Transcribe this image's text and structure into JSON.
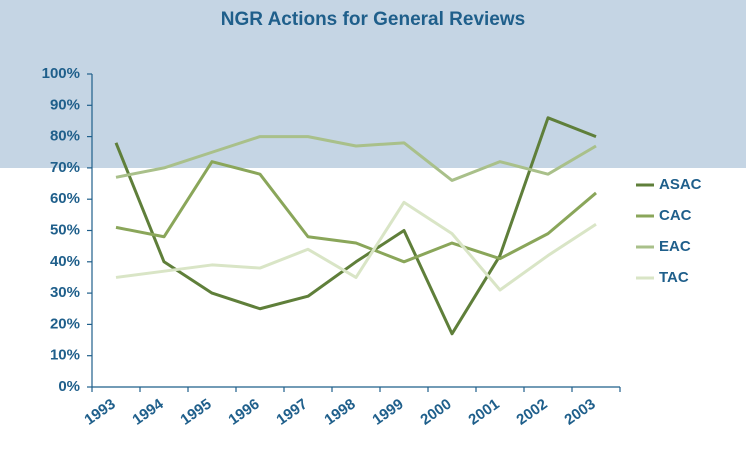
{
  "chart_data": {
    "type": "line",
    "title": "NGR Actions for General Reviews",
    "categories": [
      "1993",
      "1994",
      "1995",
      "1996",
      "1997",
      "1998",
      "1999",
      "2000",
      "2001",
      "2002",
      "2003"
    ],
    "series": [
      {
        "name": "ASAC",
        "color": "#5f7f3a",
        "values": [
          78,
          40,
          30,
          25,
          29,
          40,
          50,
          17,
          42,
          86,
          80
        ]
      },
      {
        "name": "CAC",
        "color": "#8aa65a",
        "values": [
          51,
          48,
          72,
          68,
          48,
          46,
          40,
          46,
          41,
          49,
          62
        ]
      },
      {
        "name": "EAC",
        "color": "#a9c08a",
        "values": [
          67,
          70,
          75,
          80,
          80,
          77,
          78,
          66,
          72,
          68,
          77
        ]
      },
      {
        "name": "TAC",
        "color": "#d9e5c6",
        "values": [
          35,
          37,
          39,
          38,
          44,
          35,
          59,
          49,
          31,
          42,
          52
        ]
      }
    ],
    "ylim": [
      0,
      100
    ],
    "yticks": [
      {
        "value": 0,
        "label": "0%"
      },
      {
        "value": 10,
        "label": "10%"
      },
      {
        "value": 20,
        "label": "20%"
      },
      {
        "value": 30,
        "label": "30%"
      },
      {
        "value": 40,
        "label": "40%"
      },
      {
        "value": 50,
        "label": "50%"
      },
      {
        "value": 60,
        "label": "60%"
      },
      {
        "value": 70,
        "label": "70%"
      },
      {
        "value": 80,
        "label": "80%"
      },
      {
        "value": 90,
        "label": "90%"
      },
      {
        "value": 100,
        "label": "100%"
      }
    ],
    "legend": "right"
  }
}
